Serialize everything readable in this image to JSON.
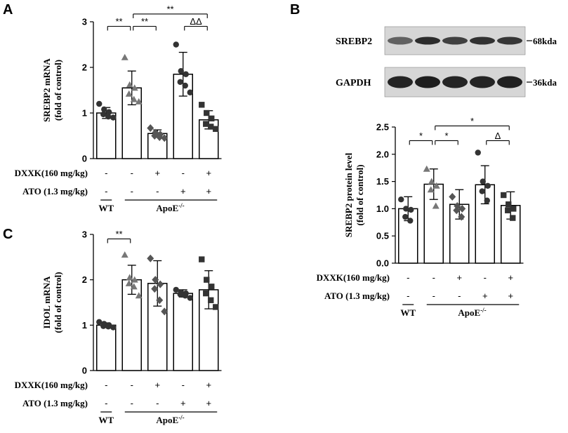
{
  "panels": [
    {
      "key": "A",
      "letter": "A"
    },
    {
      "key": "B",
      "letter": "B"
    },
    {
      "key": "C",
      "letter": "C"
    }
  ],
  "treatment_rows": [
    {
      "label": "DXXK(160 mg/kg)",
      "signs": [
        "-",
        "-",
        "+",
        "-",
        "+"
      ]
    },
    {
      "label": "ATO (1.3 mg/kg)",
      "signs": [
        "-",
        "-",
        "-",
        "+",
        "+"
      ]
    }
  ],
  "group_labels": {
    "wt": "WT",
    "apoe": "ApoE",
    "apoe_sup": "-/-"
  },
  "western_blot": {
    "rows": [
      {
        "protein": "SREBP2",
        "size": "68kda",
        "intensities": [
          0.62,
          0.9,
          0.8,
          0.88,
          0.85
        ]
      },
      {
        "protein": "GAPDH",
        "size": "36kda",
        "intensities": [
          0.95,
          0.98,
          0.95,
          0.95,
          0.97
        ]
      }
    ],
    "colors": {
      "band": "#1a1a1a",
      "membrane": "#d6d6d6"
    }
  },
  "colors": {
    "ink": "#000000",
    "bar_fill": "#ffffff",
    "dot": "#333333",
    "triangle": "#777777",
    "diamond": "#555555",
    "square": "#333333"
  },
  "chart_data": [
    {
      "panel": "A",
      "type": "bar",
      "ylabel": "SREBP2 mRNA",
      "ylabel2": "(fold of control)",
      "ylim": [
        0,
        3
      ],
      "yticks": [
        "0",
        "1",
        "2",
        "3"
      ],
      "grid": false,
      "categories": [
        "WT",
        "ApoE-/-",
        "ApoE-/- + DXXK",
        "ApoE-/- + ATO",
        "ApoE-/- + DXXK + ATO"
      ],
      "values": [
        1.0,
        1.55,
        0.55,
        1.85,
        0.85
      ],
      "errors": [
        0.12,
        0.37,
        0.08,
        0.48,
        0.2
      ],
      "markers": [
        "circle",
        "triangle",
        "diamond",
        "circle",
        "square"
      ],
      "points": [
        [
          1.2,
          1.08,
          1.02,
          0.97,
          0.92,
          0.9
        ],
        [
          2.22,
          1.62,
          1.55,
          1.42,
          1.3,
          1.25
        ],
        [
          0.67,
          0.57,
          0.53,
          0.5,
          0.47,
          0.45
        ],
        [
          2.5,
          1.92,
          1.85,
          1.68,
          1.6,
          1.45
        ],
        [
          1.18,
          1.0,
          0.88,
          0.76,
          0.7,
          0.65
        ]
      ],
      "annotations": [
        {
          "from": 0,
          "to": 1,
          "text": "**",
          "y": 2.9
        },
        {
          "from": 1,
          "to": 2,
          "text": "**",
          "y": 2.9
        },
        {
          "from": 1,
          "to": 4,
          "text": "**",
          "y": 3.17
        },
        {
          "from": 3,
          "to": 4,
          "text": "ΔΔ",
          "y": 2.9
        }
      ]
    },
    {
      "panel": "B",
      "type": "bar",
      "ylabel": "SREBP2  protein level",
      "ylabel2": "(fold of control)",
      "ylim": [
        0,
        2.5
      ],
      "yticks": [
        "0.0",
        "0.5",
        "1.0",
        "1.5",
        "2.0",
        "2.5"
      ],
      "grid": false,
      "categories": [
        "WT",
        "ApoE-/-",
        "ApoE-/- + DXXK",
        "ApoE-/- + ATO",
        "ApoE-/- + DXXK + ATO"
      ],
      "values": [
        1.0,
        1.45,
        1.08,
        1.44,
        1.06
      ],
      "errors": [
        0.22,
        0.28,
        0.27,
        0.35,
        0.25
      ],
      "markers": [
        "circle",
        "triangle",
        "diamond",
        "circle",
        "square"
      ],
      "points": [
        [
          1.17,
          1.0,
          0.98,
          0.85,
          0.78
        ],
        [
          1.73,
          1.5,
          1.42,
          1.35,
          1.05
        ],
        [
          1.22,
          1.05,
          1.0,
          0.97,
          0.85
        ],
        [
          2.03,
          1.5,
          1.42,
          1.32,
          1.15
        ],
        [
          1.25,
          1.08,
          1.0,
          0.97,
          0.83
        ]
      ],
      "annotations": [
        {
          "from": 0,
          "to": 1,
          "text": "*",
          "y": 2.25
        },
        {
          "from": 1,
          "to": 2,
          "text": "*",
          "y": 2.25
        },
        {
          "from": 1,
          "to": 4,
          "text": "*",
          "y": 2.52
        },
        {
          "from": 3,
          "to": 4,
          "text": "Δ",
          "y": 2.25
        }
      ]
    },
    {
      "panel": "C",
      "type": "bar",
      "ylabel": "IDOL mRNA",
      "ylabel2": "(fold of control)",
      "ylim": [
        0,
        3
      ],
      "yticks": [
        "0",
        "1",
        "2",
        "3"
      ],
      "grid": false,
      "categories": [
        "WT",
        "ApoE-/-",
        "ApoE-/- + DXXK",
        "ApoE-/- + ATO",
        "ApoE-/- + DXXK + ATO"
      ],
      "values": [
        1.0,
        2.0,
        1.92,
        1.7,
        1.78
      ],
      "errors": [
        0.05,
        0.32,
        0.5,
        0.08,
        0.42
      ],
      "markers": [
        "circle",
        "triangle",
        "diamond",
        "circle",
        "square"
      ],
      "points": [
        [
          1.07,
          1.03,
          1.0,
          0.98,
          0.97,
          0.95
        ],
        [
          2.55,
          2.05,
          2.0,
          1.92,
          1.85,
          1.65
        ],
        [
          2.47,
          2.0,
          1.9,
          1.8,
          1.55,
          1.3
        ],
        [
          1.78,
          1.72,
          1.7,
          1.68,
          1.65,
          1.6
        ],
        [
          2.45,
          2.0,
          1.85,
          1.7,
          1.55,
          1.4
        ]
      ],
      "annotations": [
        {
          "from": 0,
          "to": 1,
          "text": "**",
          "y": 2.9
        }
      ]
    }
  ]
}
